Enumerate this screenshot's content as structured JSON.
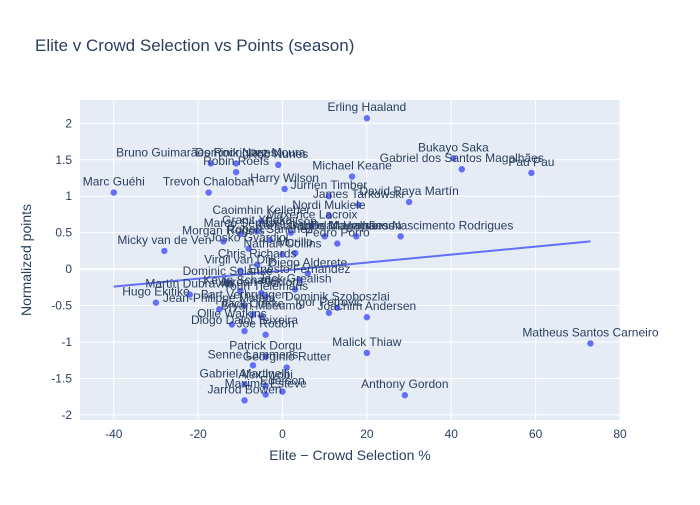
{
  "chart_data": {
    "type": "scatter",
    "title": "Elite v Crowd Selection vs Points (season)",
    "xlabel": "Elite − Crowd Selection %",
    "ylabel": "Normalized points",
    "xlim": [
      -48,
      80
    ],
    "ylim": [
      -2.07,
      2.32
    ],
    "x_ticks": [
      -40,
      -20,
      0,
      20,
      40,
      60,
      80
    ],
    "y_ticks": [
      -2,
      -1.5,
      -1,
      -0.5,
      0,
      0.5,
      1,
      1.5,
      2
    ],
    "grid": true,
    "background": "#e5ecf6",
    "marker_color": "#636efa",
    "trendline_color": "#636efa",
    "trendline": {
      "x": [
        -40,
        73
      ],
      "y": [
        -0.24,
        0.38
      ]
    },
    "points": [
      {
        "label": "Erling Haaland",
        "x": 20,
        "y": 2.07
      },
      {
        "label": "Bukayo Saka",
        "x": 40.5,
        "y": 1.52
      },
      {
        "label": "Gabriel dos Santos Magalhães",
        "x": 42.5,
        "y": 1.37
      },
      {
        "label": "Pau Pau",
        "x": 59,
        "y": 1.32
      },
      {
        "label": "Bruno Guimarães Rodriguez Moura",
        "x": -17,
        "y": 1.45
      },
      {
        "label": "Dominik Nunes",
        "x": -11,
        "y": 1.45
      },
      {
        "label": "Rob Nunes",
        "x": -1,
        "y": 1.43
      },
      {
        "label": "Robin Roefs",
        "x": -11,
        "y": 1.33
      },
      {
        "label": "Michael Keane",
        "x": 16.5,
        "y": 1.27
      },
      {
        "label": "Marc Guéhi",
        "x": -40,
        "y": 1.05
      },
      {
        "label": "Trevoh Chalobah",
        "x": -17.5,
        "y": 1.05
      },
      {
        "label": "Harry Wilson",
        "x": 0.5,
        "y": 1.1
      },
      {
        "label": "Jurrien Timber",
        "x": 11,
        "y": 1.0
      },
      {
        "label": "David Raya Martín",
        "x": 30,
        "y": 0.92
      },
      {
        "label": "James Tarkowski",
        "x": 18,
        "y": 0.88
      },
      {
        "label": "Nordi Mukiele",
        "x": 11,
        "y": 0.73
      },
      {
        "label": "Caoimhin Kelleher",
        "x": -5,
        "y": 0.66
      },
      {
        "label": "Maxence Lacroix",
        "x": 7,
        "y": 0.6
      },
      {
        "label": "Granit Xhaka",
        "x": -6,
        "y": 0.52
      },
      {
        "label": "Marco Senesi",
        "x": -10,
        "y": 0.48
      },
      {
        "label": "Evanilson",
        "x": 2,
        "y": 0.5
      },
      {
        "label": "Konstantinos Mavropanos",
        "x": 10,
        "y": 0.45
      },
      {
        "label": "Micky van de Ven",
        "x": -28,
        "y": 0.25
      },
      {
        "label": "Morgan Rogers",
        "x": -14,
        "y": 0.38
      },
      {
        "label": "Robert Sánchez",
        "x": -3,
        "y": 0.4
      },
      {
        "label": "Dean Henderson",
        "x": 17.5,
        "y": 0.45
      },
      {
        "label": "Gabriel Magalhães Nascimento Rodrigues",
        "x": 28,
        "y": 0.45
      },
      {
        "label": "Pedro Porro",
        "x": 13,
        "y": 0.35
      },
      {
        "label": "Josko Gvardiol",
        "x": -8,
        "y": 0.28
      },
      {
        "label": "Nathan Collins",
        "x": 0,
        "y": 0.2
      },
      {
        "label": "Murillo",
        "x": 3,
        "y": 0.22
      },
      {
        "label": "Chris Richards",
        "x": -6,
        "y": 0.06
      },
      {
        "label": "Virgil van Dijk",
        "x": -10,
        "y": -0.02
      },
      {
        "label": "Diego Alderete",
        "x": 6,
        "y": -0.06
      },
      {
        "label": "Dominic Solanke",
        "x": -13,
        "y": -0.18
      },
      {
        "label": "Ernesto Fernandez",
        "x": 4,
        "y": -0.15
      },
      {
        "label": "Martín Dubravka",
        "x": -22,
        "y": -0.35
      },
      {
        "label": "Kevin Schade",
        "x": -10,
        "y": -0.3
      },
      {
        "label": "Jordan Pickford",
        "x": -5,
        "y": -0.33
      },
      {
        "label": "Jack Grealish",
        "x": 3,
        "y": -0.28
      },
      {
        "label": "Hugo Ekitiké",
        "x": -30,
        "y": -0.46
      },
      {
        "label": "Bart Verbruggen",
        "x": -9,
        "y": -0.5
      },
      {
        "label": "Youri Tielemans",
        "x": -4,
        "y": -0.38
      },
      {
        "label": "Jean-Philippe Mateta",
        "x": -15,
        "y": -0.55
      },
      {
        "label": "Dominik Szoboszlai",
        "x": 13,
        "y": -0.53
      },
      {
        "label": "Joachim Andersen",
        "x": 20,
        "y": -0.66
      },
      {
        "label": "Jack Clarke",
        "x": -7,
        "y": -0.62
      },
      {
        "label": "Ollie Watkins",
        "x": -12,
        "y": -0.76
      },
      {
        "label": "Bryan Mbeumo",
        "x": -5,
        "y": -0.65
      },
      {
        "label": "Igor Petrovic",
        "x": 11,
        "y": -0.6
      },
      {
        "label": "Diogo Dalot Teixeira",
        "x": -9,
        "y": -0.85
      },
      {
        "label": "Matheus Santos Carneiro",
        "x": 73,
        "y": -1.02
      },
      {
        "label": "Joe Rodon",
        "x": -4,
        "y": -0.9
      },
      {
        "label": "Malick Thiaw",
        "x": 20,
        "y": -1.15
      },
      {
        "label": "Patrick Dorgu",
        "x": -4,
        "y": -1.2
      },
      {
        "label": "Senne Lammens",
        "x": -7,
        "y": -1.32
      },
      {
        "label": "Georginio Rutter",
        "x": 1,
        "y": -1.35
      },
      {
        "label": "Gabriel Martinelli",
        "x": -9,
        "y": -1.58
      },
      {
        "label": "Alex Iwobi",
        "x": -4,
        "y": -1.6
      },
      {
        "label": "Ederson",
        "x": 0,
        "y": -1.68
      },
      {
        "label": "Maxime Estève",
        "x": -4,
        "y": -1.72
      },
      {
        "label": "Anthony Gordon",
        "x": 29,
        "y": -1.73
      },
      {
        "label": "Jarrod Bowen",
        "x": -9,
        "y": -1.8
      }
    ]
  }
}
